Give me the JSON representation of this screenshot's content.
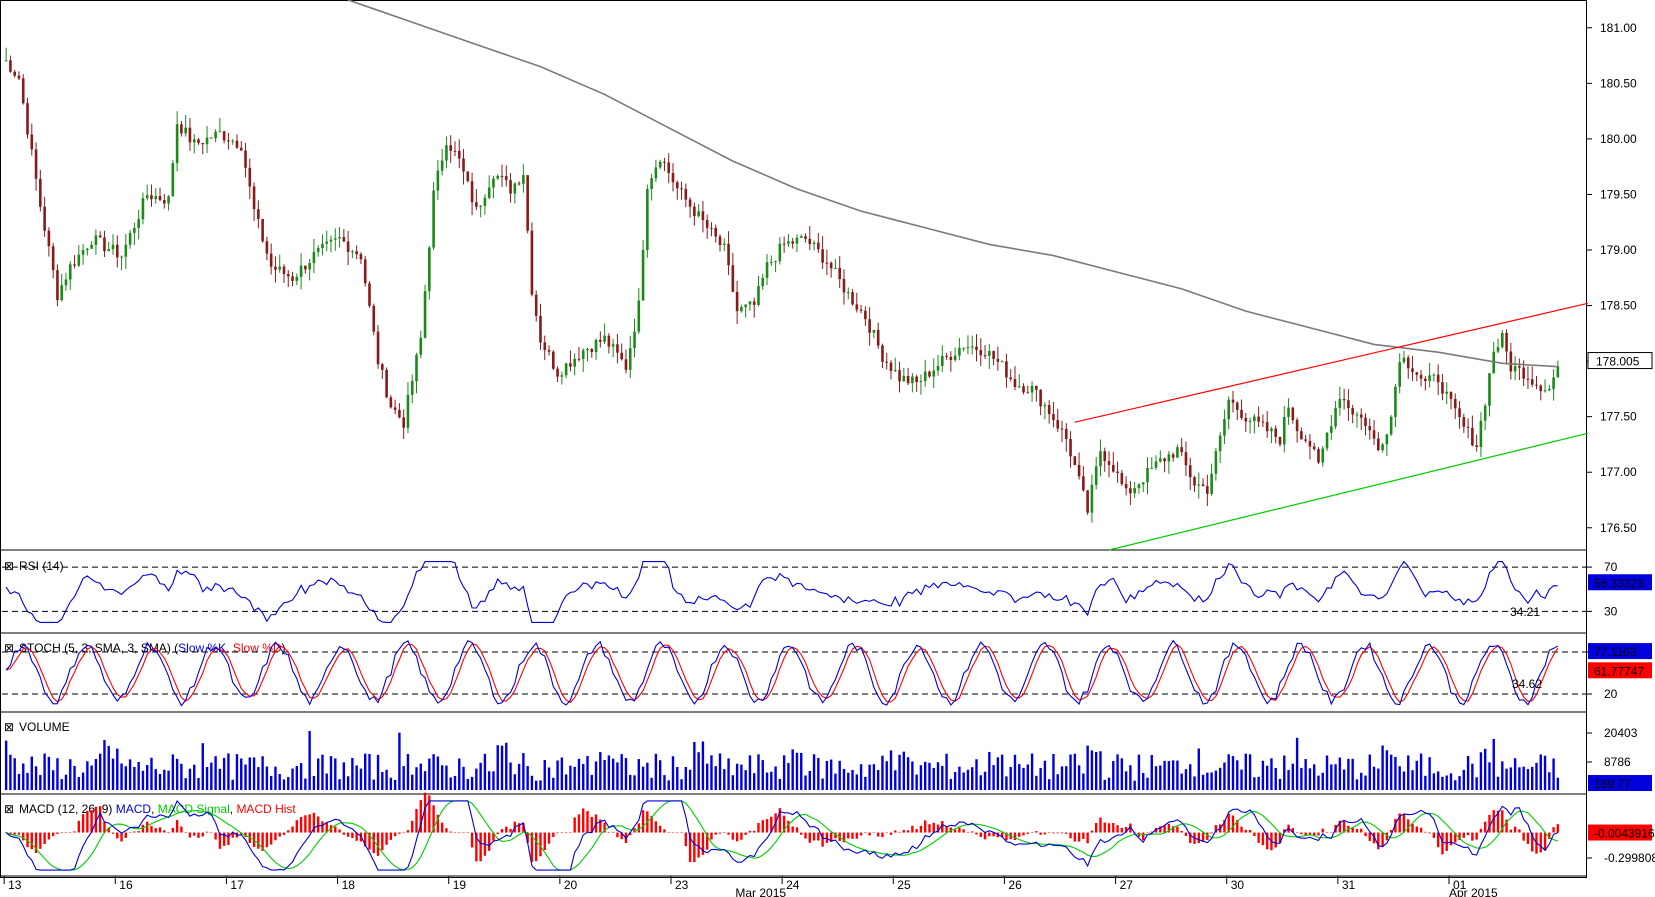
{
  "chart_data": {
    "type": "candlestick",
    "price_axis": {
      "ticks": [
        "181.00",
        "180.50",
        "180.00",
        "179.50",
        "179.00",
        "178.50",
        "178.00",
        "177.50",
        "177.00",
        "176.50"
      ],
      "ylim": [
        176.3,
        181.25
      ],
      "last_value": "178.005",
      "last_value_color": "#000000"
    },
    "date_axis": {
      "day_labels": [
        "13",
        "16",
        "17",
        "18",
        "19",
        "20",
        "23",
        "24",
        "25",
        "26",
        "27",
        "30",
        "31",
        "01"
      ],
      "month_labels": [
        "Mar 2015",
        "Apr 2015"
      ]
    },
    "candle_series": {
      "bull_color": "#1a8a1a",
      "bear_color": "#8a1a1a",
      "anchors": [
        [
          0,
          180.7
        ],
        [
          3,
          180.55
        ],
        [
          8,
          179.4
        ],
        [
          12,
          178.6
        ],
        [
          15,
          178.85
        ],
        [
          20,
          179.1
        ],
        [
          27,
          178.95
        ],
        [
          33,
          179.5
        ],
        [
          38,
          179.45
        ],
        [
          40,
          180.15
        ],
        [
          44,
          179.95
        ],
        [
          50,
          180.05
        ],
        [
          55,
          179.95
        ],
        [
          58,
          179.35
        ],
        [
          62,
          178.85
        ],
        [
          67,
          178.75
        ],
        [
          72,
          178.95
        ],
        [
          78,
          179.1
        ],
        [
          83,
          178.95
        ],
        [
          87,
          178.0
        ],
        [
          90,
          177.6
        ],
        [
          93,
          177.45
        ],
        [
          97,
          178.2
        ],
        [
          100,
          179.5
        ],
        [
          103,
          180.0
        ],
        [
          106,
          179.8
        ],
        [
          110,
          179.35
        ],
        [
          114,
          179.7
        ],
        [
          118,
          179.55
        ],
        [
          121,
          179.7
        ],
        [
          123,
          178.65
        ],
        [
          125,
          178.2
        ],
        [
          129,
          177.9
        ],
        [
          135,
          178.1
        ],
        [
          140,
          178.2
        ],
        [
          145,
          177.95
        ],
        [
          148,
          178.5
        ],
        [
          150,
          179.6
        ],
        [
          153,
          179.85
        ],
        [
          157,
          179.55
        ],
        [
          163,
          179.25
        ],
        [
          168,
          179.0
        ],
        [
          171,
          178.45
        ],
        [
          175,
          178.5
        ],
        [
          178,
          178.85
        ],
        [
          182,
          179.05
        ],
        [
          187,
          179.1
        ],
        [
          192,
          178.9
        ],
        [
          197,
          178.6
        ],
        [
          201,
          178.4
        ],
        [
          205,
          178.05
        ],
        [
          209,
          177.85
        ],
        [
          213,
          177.8
        ],
        [
          219,
          178.0
        ],
        [
          224,
          178.15
        ],
        [
          229,
          178.1
        ],
        [
          233,
          177.95
        ],
        [
          236,
          177.8
        ],
        [
          240,
          177.75
        ],
        [
          244,
          177.55
        ],
        [
          248,
          177.3
        ],
        [
          250,
          177.05
        ],
        [
          253,
          176.65
        ],
        [
          256,
          177.2
        ],
        [
          259,
          177.05
        ],
        [
          262,
          176.8
        ],
        [
          266,
          176.95
        ],
        [
          270,
          177.1
        ],
        [
          274,
          177.2
        ],
        [
          278,
          176.9
        ],
        [
          281,
          176.85
        ],
        [
          284,
          177.3
        ],
        [
          286,
          177.65
        ],
        [
          290,
          177.5
        ],
        [
          294,
          177.4
        ],
        [
          298,
          177.3
        ],
        [
          300,
          177.6
        ],
        [
          302,
          177.4
        ],
        [
          305,
          177.25
        ],
        [
          307,
          177.05
        ],
        [
          309,
          177.35
        ],
        [
          312,
          177.7
        ],
        [
          315,
          177.55
        ],
        [
          318,
          177.45
        ],
        [
          321,
          177.2
        ],
        [
          324,
          177.5
        ],
        [
          326,
          178.05
        ],
        [
          329,
          177.95
        ],
        [
          332,
          177.8
        ],
        [
          335,
          177.85
        ],
        [
          338,
          177.6
        ],
        [
          341,
          177.4
        ],
        [
          344,
          177.25
        ],
        [
          346,
          177.65
        ],
        [
          348,
          178.1
        ],
        [
          350,
          178.2
        ],
        [
          352,
          177.95
        ],
        [
          355,
          177.9
        ],
        [
          358,
          177.8
        ],
        [
          361,
          177.75
        ],
        [
          363,
          177.95
        ]
      ],
      "count": 364,
      "seed": 7
    },
    "overlays": {
      "moving_average": {
        "color": "#7a7a7a",
        "points": [
          [
            80,
            181.25
          ],
          [
            95,
            181.05
          ],
          [
            110,
            180.85
          ],
          [
            125,
            180.65
          ],
          [
            140,
            180.4
          ],
          [
            155,
            180.1
          ],
          [
            170,
            179.8
          ],
          [
            185,
            179.55
          ],
          [
            200,
            179.35
          ],
          [
            215,
            179.2
          ],
          [
            230,
            179.05
          ],
          [
            245,
            178.95
          ],
          [
            260,
            178.8
          ],
          [
            275,
            178.65
          ],
          [
            290,
            178.45
          ],
          [
            305,
            178.3
          ],
          [
            320,
            178.15
          ],
          [
            335,
            178.08
          ],
          [
            350,
            177.98
          ],
          [
            363,
            177.95
          ]
        ]
      },
      "upper_channel": {
        "color": "#ff0000",
        "points": [
          [
            250,
            177.45
          ],
          [
            370,
            178.52
          ]
        ]
      },
      "lower_channel": {
        "color": "#00cc00",
        "points": [
          [
            258,
            176.3
          ],
          [
            370,
            177.35
          ]
        ]
      }
    },
    "rsi": {
      "label": "RSI (14)",
      "line_color": "#0000dd",
      "levels": [
        "70",
        "30"
      ],
      "extra_tick": "34.21",
      "last_value": "56.33323",
      "last_value_bg": "#0000dd",
      "ylim": [
        15,
        80
      ]
    },
    "stoch": {
      "label": "STOCH (5, 3, SMA, 3, SMA)",
      "k_label": "Slow %K",
      "d_label": "Slow %D",
      "k_color": "#0000dd",
      "d_color": "#ff0000",
      "levels": [
        "80",
        "20"
      ],
      "extra_tick": "34.62",
      "last_k": "77.1163",
      "last_d": "61.77747",
      "ylim": [
        0,
        100
      ]
    },
    "volume": {
      "label": "VOLUME",
      "bar_color": "#0000dd",
      "ticks": [
        "20403",
        "8786"
      ],
      "last_value": "189.77",
      "last_value_bg": "#0000dd",
      "ymax": 24000
    },
    "macd": {
      "label": "MACD (12, 26, 9)",
      "macd_label": "MACD",
      "signal_label": "MACD Signal",
      "hist_label": "MACD Hist",
      "macd_color": "#0000dd",
      "signal_color": "#00cc00",
      "hist_color": "#ff0000",
      "ticks": [
        "-0.299808"
      ],
      "last_value": "-0.0043916",
      "last_value_bg": "#ff0000",
      "ylim": [
        -0.4,
        0.35
      ]
    }
  }
}
